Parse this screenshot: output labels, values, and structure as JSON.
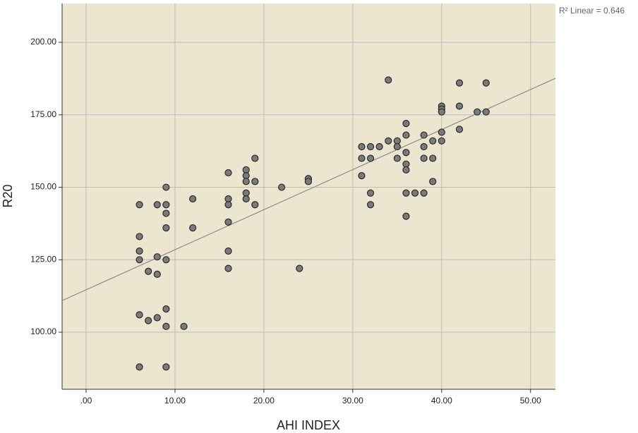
{
  "chart_data": {
    "type": "scatter",
    "x_label": "AHI INDEX",
    "y_label": "R20",
    "annotation": "R² Linear = 0.646",
    "point_color": "#7a7a7a",
    "background": "#ece5d0",
    "grid": true,
    "xlim": [
      -2.7,
      52.8
    ],
    "ylim": [
      80.3,
      213.4
    ],
    "xticks": [
      {
        "value": 0,
        "label": ".00"
      },
      {
        "value": 10,
        "label": "10.00"
      },
      {
        "value": 20,
        "label": "20.00"
      },
      {
        "value": 30,
        "label": "30.00"
      },
      {
        "value": 40,
        "label": "40.00"
      },
      {
        "value": 50,
        "label": "50.00"
      }
    ],
    "yticks": [
      {
        "value": 100,
        "label": "100.00"
      },
      {
        "value": 125,
        "label": "125.00"
      },
      {
        "value": 150,
        "label": "150.00"
      },
      {
        "value": 175,
        "label": "175.00"
      },
      {
        "value": 200,
        "label": "200.00"
      }
    ],
    "x": [
      6,
      6,
      6,
      6,
      6,
      6,
      7,
      7,
      8,
      8,
      8,
      8,
      9,
      9,
      9,
      9,
      9,
      9,
      9,
      9,
      11,
      12,
      12,
      16,
      16,
      16,
      16,
      16,
      16,
      18,
      18,
      18,
      18,
      18,
      19,
      19,
      19,
      22,
      24,
      25,
      25,
      31,
      31,
      31,
      32,
      32,
      32,
      32,
      33,
      34,
      34,
      35,
      35,
      35,
      36,
      36,
      36,
      36,
      36,
      36,
      36,
      37,
      38,
      38,
      38,
      38,
      39,
      39,
      39,
      40,
      40,
      40,
      40,
      40,
      42,
      42,
      42,
      44,
      45,
      45
    ],
    "y": [
      144,
      133,
      128,
      125,
      106,
      88,
      121,
      104,
      144,
      126,
      120,
      105,
      150,
      144,
      141,
      136,
      125,
      108,
      102,
      88,
      102,
      146,
      136,
      155,
      146,
      144,
      138,
      128,
      122,
      156,
      154,
      152,
      148,
      146,
      160,
      152,
      144,
      150,
      122,
      153,
      152,
      164,
      160,
      154,
      164,
      160,
      148,
      144,
      164,
      187,
      166,
      166,
      164,
      160,
      172,
      168,
      162,
      158,
      156,
      148,
      140,
      148,
      168,
      164,
      160,
      148,
      166,
      160,
      152,
      178,
      177,
      176,
      169,
      166,
      186,
      178,
      170,
      176,
      186,
      176
    ],
    "fit_line": {
      "color": "#8c8c8c",
      "x": [
        -2.7,
        52.8
      ],
      "y": [
        110.9,
        187.6
      ]
    }
  }
}
